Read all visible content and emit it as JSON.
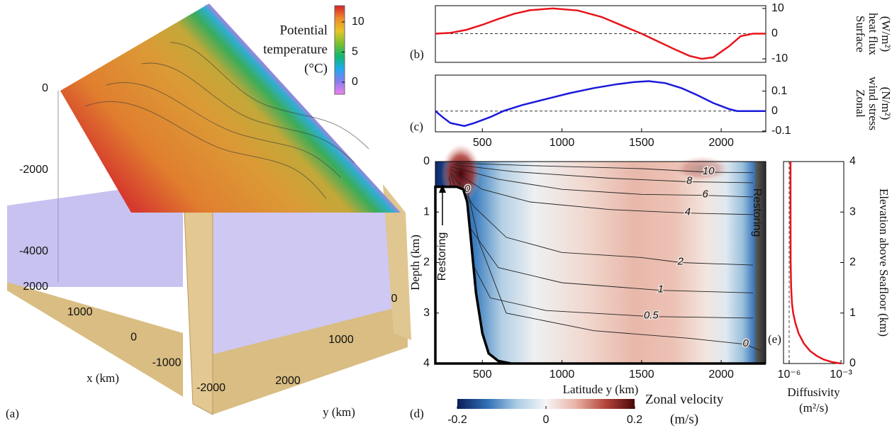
{
  "chart_data": [
    {
      "type": "surface3d",
      "label": "(a)",
      "colorbar_label": [
        "Potential",
        "temperature",
        "(°C)"
      ],
      "clim": [
        -2,
        12.7
      ],
      "cticks": [
        0,
        5,
        10
      ],
      "colormap": [
        "#f080f0",
        "#8a7cf0",
        "#20a8f0",
        "#10b870",
        "#7cc030",
        "#e8c428",
        "#ee8a2c",
        "#d8202a"
      ],
      "zlim": [
        -4000,
        0
      ],
      "zticks": [
        0,
        -2000,
        -4000
      ],
      "xlim": [
        -2000,
        2000
      ],
      "xticks": [
        2000,
        1000,
        0,
        -1000,
        -2000
      ],
      "xlabel": "x (km)",
      "ylim": [
        0,
        2000
      ],
      "yticks": [
        0,
        1000,
        2000
      ],
      "ylabel": "y (km)"
    },
    {
      "type": "line",
      "label": "(b)",
      "ylabel": [
        "Surface",
        "heat flux",
        "(W/m²)"
      ],
      "xlim": [
        205,
        2280
      ],
      "ylim": [
        -11.4,
        11.1
      ],
      "yticks": [
        -10,
        0,
        10
      ],
      "zero_line": true,
      "series": [
        {
          "color": "#e8141b",
          "x": [
            205,
            300,
            400,
            500,
            600,
            700,
            800,
            943,
            1100,
            1250,
            1400,
            1500,
            1600,
            1700,
            1800,
            1878,
            1950,
            2050,
            2123,
            2200,
            2280
          ],
          "values": [
            0,
            0.3,
            1.5,
            3.5,
            5.8,
            7.9,
            9.3,
            10,
            9.2,
            6.6,
            2.6,
            0,
            -3,
            -6,
            -8.8,
            -10,
            -9.4,
            -5,
            -1,
            0,
            0
          ]
        }
      ]
    },
    {
      "type": "line",
      "label": "(c)",
      "ylabel": [
        "Zonal",
        "wind stress",
        "(N/m²)"
      ],
      "xlim": [
        205,
        2280
      ],
      "xticks": [
        500,
        1000,
        1500,
        2000
      ],
      "ylim": [
        -0.104,
        0.18
      ],
      "yticks": [
        -0.1,
        0,
        0.1
      ],
      "zero_line": true,
      "series": [
        {
          "color": "#1a1adb",
          "x": [
            205,
            250,
            300,
            387,
            450,
            550,
            632,
            750,
            900,
            1050,
            1200,
            1350,
            1450,
            1545,
            1650,
            1750,
            1850,
            1950,
            2050,
            2100,
            2200,
            2280
          ],
          "values": [
            0,
            -0.03,
            -0.06,
            -0.075,
            -0.06,
            -0.03,
            0,
            0.03,
            0.06,
            0.09,
            0.115,
            0.135,
            0.145,
            0.15,
            0.14,
            0.115,
            0.08,
            0.04,
            0.01,
            0,
            0,
            0
          ]
        }
      ]
    },
    {
      "type": "contour",
      "label": "(d)",
      "xlabel": "Latitude y (km)",
      "ylabel": "Depth (km)",
      "xlim": [
        205,
        2280
      ],
      "xticks": [
        500,
        1000,
        1500,
        2000
      ],
      "ylim": [
        0,
        4
      ],
      "yticks": [
        0,
        1,
        2,
        3,
        4
      ],
      "contours": [
        {
          "level": 10,
          "x": [
            330,
            800,
            1500,
            1920,
            2200
          ],
          "depth": [
            0.03,
            0.08,
            0.14,
            0.21,
            0.22
          ]
        },
        {
          "level": 8,
          "x": [
            320,
            700,
            1300,
            1800,
            2200
          ],
          "depth": [
            0.06,
            0.2,
            0.33,
            0.4,
            0.42
          ]
        },
        {
          "level": 6,
          "x": [
            300,
            600,
            1000,
            1500,
            1900,
            2200
          ],
          "depth": [
            0.1,
            0.35,
            0.55,
            0.65,
            0.67,
            0.7
          ]
        },
        {
          "level": 4,
          "x": [
            300,
            500,
            800,
            1300,
            1790,
            2200
          ],
          "depth": [
            0.15,
            0.55,
            0.8,
            0.95,
            1.02,
            1.05
          ]
        },
        {
          "level": 2,
          "x": [
            300,
            450,
            650,
            1000,
            1500,
            1745,
            2200
          ],
          "depth": [
            0.2,
            0.9,
            1.5,
            1.8,
            1.9,
            2.0,
            2.05
          ]
        },
        {
          "level": 1,
          "x": [
            300,
            420,
            600,
            1000,
            1620,
            2200
          ],
          "depth": [
            0.25,
            1.3,
            2.1,
            2.4,
            2.55,
            2.6
          ]
        },
        {
          "level": 0.5,
          "x": [
            290,
            400,
            550,
            900,
            1560,
            2200
          ],
          "depth": [
            0.3,
            1.8,
            2.7,
            2.95,
            3.07,
            3.1
          ]
        },
        {
          "level": 0,
          "x": [
            350,
            405,
            480,
            650,
            1200,
            1800,
            2154,
            2250
          ],
          "depth": [
            0.4,
            0.56,
            1.6,
            3.0,
            3.35,
            3.5,
            3.62,
            3.75
          ]
        }
      ],
      "topography": {
        "x": [
          205,
          340,
          380,
          405,
          430,
          460,
          500,
          540,
          600,
          680,
          2280
        ],
        "depth": [
          0.5,
          0.5,
          0.55,
          0.8,
          1.6,
          2.6,
          3.4,
          3.8,
          3.95,
          4,
          4
        ]
      },
      "annotations": [
        "Restoring",
        "Restoring"
      ],
      "colorbar_label": "Zonal velocity",
      "colorbar_unit": "(m/s)",
      "clim": [
        -0.2,
        0.2
      ],
      "cticks": [
        -0.2,
        0,
        0.2
      ],
      "colormap": [
        "#0b1d57",
        "#2f6fb5",
        "#a9cbe4",
        "#f6f6f6",
        "#e9b3a6",
        "#b5473d",
        "#4a0608"
      ]
    },
    {
      "type": "line",
      "label": "(e)",
      "x_scale": "log",
      "xlim": [
        4.7e-07,
        0.00145
      ],
      "xticks": [
        {
          "value": 1e-06,
          "label": "10⁻⁶"
        },
        {
          "value": 0.001,
          "label": "10⁻³"
        }
      ],
      "xlabel": [
        "Diffusivity",
        "(m²/s)"
      ],
      "ylabel": "Elevation above Seafloor (km)",
      "ylim": [
        0,
        4
      ],
      "yticks": [
        0,
        1,
        2,
        3,
        4
      ],
      "reference_x": 1e-06,
      "series": [
        {
          "color": "#e8141b",
          "x": [
            1.2e-06,
            1.2e-06,
            1.22e-06,
            1.3e-06,
            1.45e-06,
            1.7e-06,
            2.3e-06,
            3.5e-06,
            7e-06,
            1.6e-05,
            4e-05,
            0.0001,
            0.0003,
            0.001
          ],
          "values": [
            4,
            3,
            2,
            1.5,
            1.2,
            1,
            0.8,
            0.6,
            0.4,
            0.25,
            0.15,
            0.08,
            0.03,
            0
          ]
        }
      ]
    }
  ]
}
